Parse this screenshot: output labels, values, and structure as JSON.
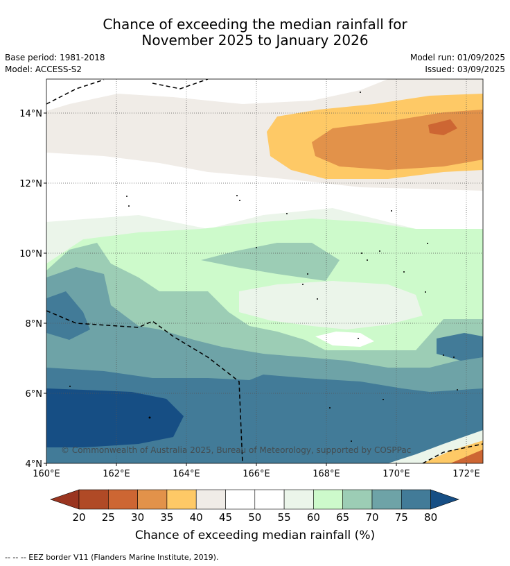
{
  "title_line1": "Chance of exceeding the median rainfall for",
  "title_line2": "November 2025 to January 2026",
  "base_period": "Base period: 1981-2018",
  "model": "Model: ACCESS-S2",
  "model_run": "Model run: 01/09/2025",
  "issued": "Issued: 03/09/2025",
  "copyright": "© Commonwealth of Australia 2025, Bureau of Meteorology, supported by COSPPac",
  "x_ticks": [
    "160°E",
    "162°E",
    "164°E",
    "166°E",
    "168°E",
    "170°E",
    "172°E"
  ],
  "y_ticks": [
    "14°N",
    "12°N",
    "10°N",
    "8°N",
    "6°N",
    "4°N"
  ],
  "colorbar": {
    "title": "Chance of exceeding median rainfall (%)",
    "labels": [
      "20",
      "25",
      "30",
      "35",
      "40",
      "45",
      "50",
      "55",
      "60",
      "65",
      "70",
      "75",
      "80"
    ],
    "colors": [
      "#b04a26",
      "#cd6633",
      "#e2924a",
      "#fec966",
      "#f0ece7",
      "#ffffff",
      "#ffffff",
      "#ebf5ea",
      "#cdfacb",
      "#9ccdb5",
      "#6ea3a7",
      "#427b98",
      "#164e84"
    ],
    "under_color": "#9a3520",
    "over_color": "#164e84"
  },
  "footnote": "--  --  -- EEZ border V11 (Flanders Marine Institute, 2019)."
}
